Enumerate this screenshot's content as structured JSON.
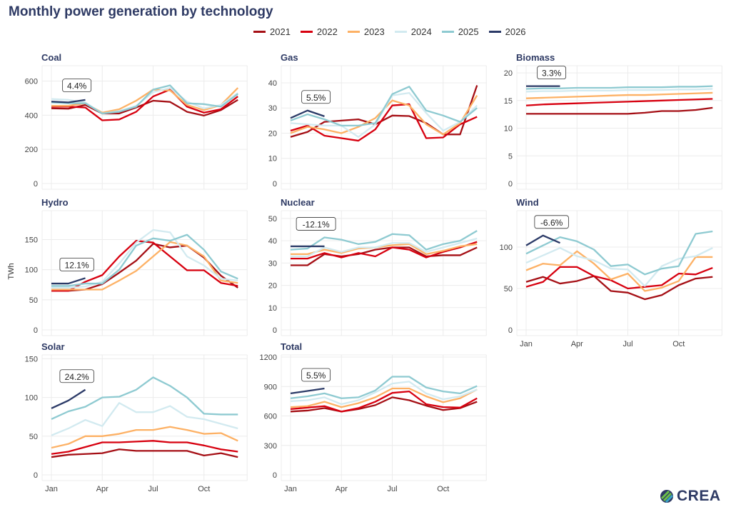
{
  "title": "Monthly power generation by technology",
  "ylabel": "TWh",
  "logo_text": "CREA",
  "legend": [
    {
      "label": "2021",
      "color": "#a50f15"
    },
    {
      "label": "2022",
      "color": "#d7000f"
    },
    {
      "label": "2023",
      "color": "#fdb165"
    },
    {
      "label": "2024",
      "color": "#d2eaf0"
    },
    {
      "label": "2025",
      "color": "#8ecad1"
    },
    {
      "label": "2026",
      "color": "#2b3a67"
    }
  ],
  "chart_data": [
    {
      "type": "line",
      "title": "Coal",
      "ylim": [
        0,
        690
      ],
      "yticks": [
        0,
        200,
        400,
        600
      ],
      "xticks": [],
      "annotation": "4.4%",
      "series": [
        {
          "name": "2021",
          "values": [
            440,
            438,
            460,
            410,
            410,
            445,
            485,
            478,
            420,
            398,
            430,
            490
          ]
        },
        {
          "name": "2022",
          "values": [
            450,
            450,
            445,
            370,
            375,
            420,
            510,
            550,
            450,
            415,
            435,
            510
          ]
        },
        {
          "name": "2023",
          "values": [
            455,
            455,
            470,
            415,
            435,
            485,
            550,
            545,
            460,
            430,
            460,
            560
          ]
        },
        {
          "name": "2024",
          "values": [
            495,
            490,
            475,
            410,
            425,
            455,
            535,
            560,
            480,
            440,
            460,
            530
          ]
        },
        {
          "name": "2025",
          "values": [
            475,
            470,
            470,
            410,
            420,
            450,
            550,
            575,
            470,
            465,
            450,
            525
          ]
        },
        {
          "name": "2026",
          "values": [
            480,
            475,
            490
          ]
        }
      ]
    },
    {
      "type": "line",
      "title": "Gas",
      "ylim": [
        0,
        46.8
      ],
      "yticks": [
        0,
        10,
        20,
        30,
        40
      ],
      "xticks": [],
      "annotation": "5.5%",
      "series": [
        {
          "name": "2021",
          "values": [
            18.5,
            20.5,
            24.5,
            25,
            25.5,
            23.5,
            27,
            26.8,
            24,
            19.5,
            19.5,
            39
          ]
        },
        {
          "name": "2022",
          "values": [
            21,
            23,
            19,
            18,
            17,
            21.5,
            31,
            31.5,
            18,
            18.3,
            23.5,
            26.5
          ]
        },
        {
          "name": "2023",
          "values": [
            20,
            22.5,
            21.5,
            20,
            22.5,
            26,
            33,
            31,
            23.5,
            19.5,
            24,
            35
          ]
        },
        {
          "name": "2024",
          "values": [
            24,
            23.5,
            23,
            23,
            18.5,
            23.5,
            35,
            36,
            28,
            21,
            24.5,
            31
          ]
        },
        {
          "name": "2025",
          "values": [
            25,
            27.5,
            25.5,
            23,
            23,
            24,
            35.5,
            38.5,
            29,
            27,
            24.5,
            30
          ]
        },
        {
          "name": "2026",
          "values": [
            26,
            29,
            26.7
          ]
        }
      ]
    },
    {
      "type": "line",
      "title": "Biomass",
      "ylim": [
        0,
        21.3
      ],
      "yticks": [
        0,
        5,
        10,
        15,
        20
      ],
      "xticks": [],
      "annotation": "3.3%",
      "series": [
        {
          "name": "2021",
          "values": [
            12.6,
            12.6,
            12.6,
            12.6,
            12.6,
            12.6,
            12.6,
            12.8,
            13.1,
            13.1,
            13.3,
            13.7
          ]
        },
        {
          "name": "2022",
          "values": [
            14.1,
            14.3,
            14.4,
            14.5,
            14.6,
            14.7,
            14.8,
            14.9,
            15.0,
            15.1,
            15.2,
            15.3
          ]
        },
        {
          "name": "2023",
          "values": [
            15.4,
            15.5,
            15.6,
            15.7,
            15.8,
            15.9,
            16.0,
            16.0,
            16.1,
            16.2,
            16.3,
            16.4
          ]
        },
        {
          "name": "2024",
          "values": [
            16.6,
            16.7,
            16.7,
            16.8,
            16.8,
            16.8,
            16.9,
            16.9,
            16.9,
            17.0,
            17.0,
            17.1
          ]
        },
        {
          "name": "2025",
          "values": [
            17.1,
            17.2,
            17.2,
            17.3,
            17.3,
            17.3,
            17.4,
            17.4,
            17.4,
            17.5,
            17.5,
            17.6
          ]
        },
        {
          "name": "2026",
          "values": [
            17.6,
            17.6,
            17.6
          ]
        }
      ]
    },
    {
      "type": "line",
      "title": "Hydro",
      "ylim": [
        0,
        198
      ],
      "yticks": [
        0,
        50,
        100,
        150
      ],
      "xticks": [],
      "annotation": "12.1%",
      "series": [
        {
          "name": "2021",
          "values": [
            65,
            65,
            67,
            76,
            95,
            115,
            143,
            137,
            140,
            120,
            90,
            70
          ]
        },
        {
          "name": "2022",
          "values": [
            65,
            65,
            80,
            91,
            122,
            148,
            145,
            122,
            99,
            99,
            78,
            73
          ]
        },
        {
          "name": "2023",
          "values": [
            67,
            67,
            67,
            67,
            82,
            98,
            122,
            146,
            140,
            122,
            82,
            78
          ]
        },
        {
          "name": "2024",
          "values": [
            70,
            70,
            72,
            80,
            110,
            145,
            166,
            162,
            122,
            107,
            85,
            82
          ]
        },
        {
          "name": "2025",
          "values": [
            73,
            73,
            77,
            77,
            100,
            140,
            152,
            148,
            158,
            133,
            97,
            85
          ]
        },
        {
          "name": "2026",
          "values": [
            77,
            77,
            86
          ]
        }
      ]
    },
    {
      "type": "line",
      "title": "Nuclear",
      "ylim": [
        0,
        53.5
      ],
      "yticks": [
        0,
        10,
        20,
        30,
        40,
        50
      ],
      "xticks": [],
      "annotation": "-12.1%",
      "series": [
        {
          "name": "2021",
          "values": [
            29,
            29,
            34,
            33,
            34,
            36,
            37,
            37,
            33,
            33.5,
            33.5,
            37
          ]
        },
        {
          "name": "2022",
          "values": [
            32,
            32,
            34.5,
            32.5,
            34.5,
            33,
            37,
            36,
            32.5,
            35,
            37,
            39.5
          ]
        },
        {
          "name": "2023",
          "values": [
            34,
            34,
            36,
            34.5,
            36.5,
            37,
            38,
            38.5,
            34,
            35.5,
            37.5,
            38.5
          ]
        },
        {
          "name": "2024",
          "values": [
            33,
            33,
            37,
            35,
            37,
            37,
            39,
            39,
            35,
            37,
            39,
            41
          ]
        },
        {
          "name": "2025",
          "values": [
            36,
            36.5,
            41.5,
            40.5,
            38.5,
            39.5,
            43,
            42.5,
            36,
            38.5,
            40,
            44.5
          ]
        },
        {
          "name": "2026",
          "values": [
            37.5,
            37.5,
            37.5
          ]
        }
      ]
    },
    {
      "type": "line",
      "title": "Wind",
      "ylim": [
        0,
        144
      ],
      "yticks": [
        0,
        50,
        100
      ],
      "xticks": [
        "Jan",
        "Apr",
        "Jul",
        "Oct"
      ],
      "annotation": "-6.6%",
      "series": [
        {
          "name": "2021",
          "values": [
            58,
            64,
            56,
            59,
            65,
            47,
            45,
            37,
            42,
            54,
            62,
            64
          ]
        },
        {
          "name": "2022",
          "values": [
            52,
            58,
            76,
            76,
            65,
            60,
            50,
            52,
            54,
            68,
            67,
            75
          ]
        },
        {
          "name": "2023",
          "values": [
            72,
            80,
            78,
            95,
            80,
            61,
            68,
            47,
            51,
            59,
            88,
            88
          ]
        },
        {
          "name": "2024",
          "values": [
            81,
            90,
            99,
            89,
            84,
            74,
            73,
            53,
            77,
            86,
            89,
            99
          ]
        },
        {
          "name": "2025",
          "values": [
            92,
            102,
            112,
            107,
            97,
            77,
            79,
            67,
            74,
            77,
            116,
            119
          ]
        },
        {
          "name": "2026",
          "values": [
            102,
            114,
            105
          ]
        }
      ]
    },
    {
      "type": "line",
      "title": "Solar",
      "ylim": [
        0,
        155
      ],
      "yticks": [
        0,
        50,
        100,
        150
      ],
      "xticks": [
        "Jan",
        "Apr",
        "Jul",
        "Oct"
      ],
      "annotation": "24.2%",
      "series": [
        {
          "name": "2021",
          "values": [
            23,
            26,
            27,
            28,
            33,
            31,
            31,
            31,
            31,
            25,
            28,
            23
          ]
        },
        {
          "name": "2022",
          "values": [
            27,
            30,
            36,
            42,
            42,
            43,
            44,
            42,
            42,
            38,
            33,
            30
          ]
        },
        {
          "name": "2023",
          "values": [
            35,
            40,
            50,
            50,
            53,
            58,
            58,
            62,
            58,
            53,
            54,
            44
          ]
        },
        {
          "name": "2024",
          "values": [
            51,
            60,
            71,
            63,
            93,
            81,
            81,
            89,
            75,
            72,
            66,
            60
          ]
        },
        {
          "name": "2025",
          "values": [
            72,
            82,
            88,
            100,
            101,
            110,
            126,
            115,
            100,
            79,
            78,
            78
          ]
        },
        {
          "name": "2026",
          "values": [
            86,
            96,
            110
          ]
        }
      ]
    },
    {
      "type": "line",
      "title": "Total",
      "ylim": [
        0,
        1222
      ],
      "yticks": [
        0,
        300,
        600,
        900,
        1200
      ],
      "xticks": [
        "Jan",
        "Apr",
        "Jul",
        "Oct"
      ],
      "annotation": "5.5%",
      "series": [
        {
          "name": "2021",
          "values": [
            645,
            655,
            680,
            645,
            670,
            710,
            790,
            760,
            705,
            660,
            680,
            745
          ]
        },
        {
          "name": "2022",
          "values": [
            670,
            685,
            700,
            645,
            680,
            745,
            835,
            850,
            720,
            690,
            685,
            780
          ]
        },
        {
          "name": "2023",
          "values": [
            690,
            700,
            745,
            690,
            730,
            790,
            880,
            880,
            800,
            740,
            780,
            870
          ]
        },
        {
          "name": "2024",
          "values": [
            750,
            760,
            790,
            720,
            760,
            840,
            930,
            950,
            830,
            770,
            800,
            870
          ]
        },
        {
          "name": "2025",
          "values": [
            780,
            800,
            830,
            780,
            790,
            860,
            1000,
            1000,
            890,
            850,
            830,
            905
          ]
        },
        {
          "name": "2026",
          "values": [
            830,
            855,
            880
          ]
        }
      ]
    }
  ]
}
